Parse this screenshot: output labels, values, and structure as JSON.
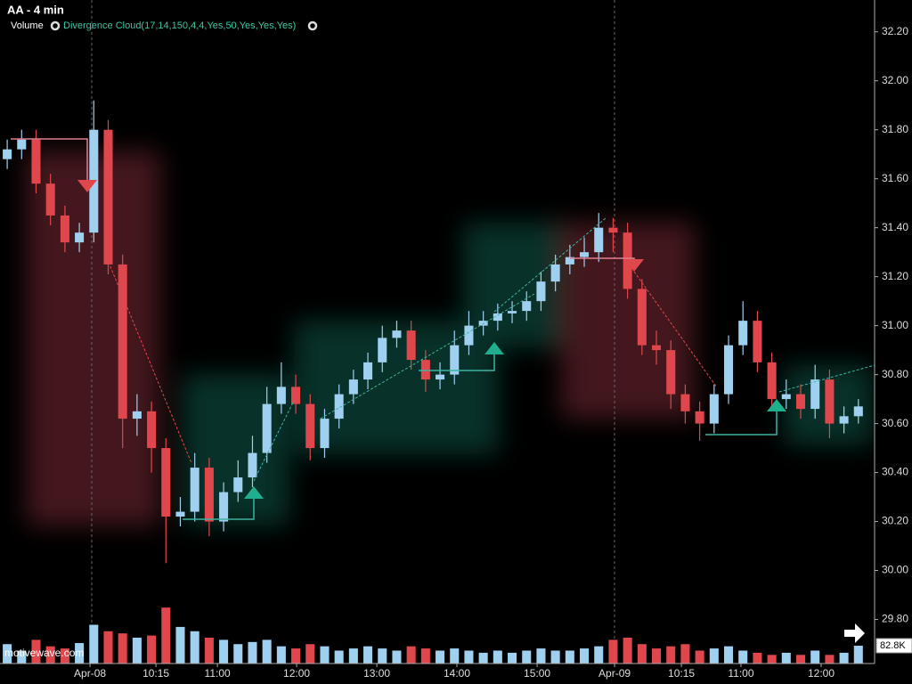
{
  "chart_data": {
    "type": "candlestick",
    "title": "AA - 4 min",
    "indicators": [
      "Volume",
      "Divergence Cloud(17,14,150,4,4,Yes,50,Yes,Yes,Yes)"
    ],
    "watermark": "motivewave.com",
    "xlim": [
      -0.5,
      60
    ],
    "xticks": [
      {
        "value": 5.74,
        "label": "Apr-08"
      },
      {
        "value": 10.31,
        "label": "10:15"
      },
      {
        "value": 14.57,
        "label": "11:00"
      },
      {
        "value": 20.06,
        "label": "12:00"
      },
      {
        "value": 25.62,
        "label": "13:00"
      },
      {
        "value": 31.17,
        "label": "14:00"
      },
      {
        "value": 36.73,
        "label": "15:00"
      },
      {
        "value": 42.1,
        "label": "Apr-09"
      },
      {
        "value": 46.73,
        "label": "10:15"
      },
      {
        "value": 50.86,
        "label": "11:00"
      },
      {
        "value": 56.42,
        "label": "12:00"
      }
    ],
    "ylim": [
      29.62,
      32.33
    ],
    "yticks": [
      {
        "value": 29.8,
        "label": "29.80"
      },
      {
        "value": 30.0,
        "label": "30.00"
      },
      {
        "value": 30.2,
        "label": "30.20"
      },
      {
        "value": 30.4,
        "label": "30.40"
      },
      {
        "value": 30.6,
        "label": "30.60"
      },
      {
        "value": 30.8,
        "label": "30.80"
      },
      {
        "value": 31.0,
        "label": "31.00"
      },
      {
        "value": 31.2,
        "label": "31.20"
      },
      {
        "value": 31.4,
        "label": "31.40"
      },
      {
        "value": 31.6,
        "label": "31.60"
      },
      {
        "value": 31.8,
        "label": "31.80"
      },
      {
        "value": 32.0,
        "label": "32.00"
      },
      {
        "value": 32.2,
        "label": "32.20"
      }
    ],
    "y2lim": [
      0,
      600
    ],
    "y2ticks": [
      {
        "value": 82.8,
        "label": "82.8K"
      }
    ],
    "up_color": "#9fd0f0",
    "down_color": "#e0474c",
    "open": [
      31.68,
      31.72,
      31.76,
      31.58,
      31.45,
      31.34,
      31.38,
      31.8,
      31.25,
      30.62,
      30.65,
      30.5,
      30.22,
      30.24,
      30.42,
      30.2,
      30.32,
      30.38,
      30.48,
      30.68,
      30.75,
      30.68,
      30.5,
      30.62,
      30.72,
      30.78,
      30.85,
      30.95,
      30.98,
      30.86,
      30.78,
      30.8,
      30.92,
      31.0,
      31.02,
      31.05,
      31.06,
      31.1,
      31.18,
      31.25,
      31.28,
      31.3,
      31.4,
      31.38,
      31.15,
      30.92,
      30.9,
      30.72,
      30.65,
      30.6,
      30.72,
      30.92,
      31.02,
      30.85,
      30.7,
      30.72,
      30.66,
      30.78,
      30.6,
      30.63
    ],
    "high": [
      31.76,
      31.8,
      31.8,
      31.62,
      31.49,
      31.42,
      31.92,
      31.84,
      31.29,
      30.72,
      30.69,
      30.54,
      30.3,
      30.48,
      30.46,
      30.36,
      30.45,
      30.55,
      30.75,
      30.85,
      30.8,
      30.72,
      30.66,
      30.76,
      30.82,
      30.89,
      31.0,
      31.02,
      31.02,
      30.9,
      30.85,
      30.98,
      31.06,
      31.06,
      31.09,
      31.1,
      31.14,
      31.22,
      31.29,
      31.33,
      31.36,
      31.46,
      31.44,
      31.42,
      31.19,
      30.98,
      30.94,
      30.76,
      30.69,
      30.76,
      30.96,
      31.1,
      31.06,
      30.89,
      30.78,
      30.76,
      30.84,
      30.82,
      30.67,
      30.7
    ],
    "low": [
      31.64,
      31.68,
      31.54,
      31.41,
      31.3,
      31.3,
      31.34,
      31.21,
      30.5,
      30.55,
      30.4,
      30.03,
      30.18,
      30.2,
      30.14,
      30.16,
      30.28,
      30.34,
      30.44,
      30.64,
      30.64,
      30.45,
      30.46,
      30.58,
      30.68,
      30.74,
      30.81,
      30.91,
      30.82,
      30.73,
      30.74,
      30.76,
      30.88,
      30.96,
      30.98,
      31.01,
      31.02,
      31.06,
      31.14,
      31.21,
      31.24,
      31.26,
      31.3,
      31.11,
      30.88,
      30.84,
      30.66,
      30.6,
      30.53,
      30.56,
      30.68,
      30.88,
      30.81,
      30.66,
      30.66,
      30.62,
      30.62,
      30.54,
      30.56,
      30.6
    ],
    "close": [
      31.72,
      31.76,
      31.58,
      31.45,
      31.34,
      31.38,
      31.8,
      31.25,
      30.62,
      30.65,
      30.5,
      30.22,
      30.24,
      30.42,
      30.2,
      30.32,
      30.38,
      30.48,
      30.68,
      30.75,
      30.68,
      30.5,
      30.62,
      30.72,
      30.78,
      30.85,
      30.95,
      30.98,
      30.86,
      30.78,
      30.8,
      30.92,
      31.0,
      31.02,
      31.05,
      31.06,
      31.1,
      31.18,
      31.25,
      31.28,
      31.3,
      31.4,
      31.38,
      31.15,
      30.92,
      30.9,
      30.72,
      30.65,
      30.6,
      30.72,
      30.92,
      31.02,
      30.85,
      30.7,
      30.72,
      30.66,
      30.78,
      30.6,
      30.63,
      30.67
    ],
    "volume": [
      90,
      60,
      110,
      80,
      70,
      95,
      180,
      150,
      140,
      120,
      130,
      260,
      170,
      150,
      120,
      110,
      90,
      100,
      110,
      80,
      70,
      90,
      80,
      60,
      70,
      80,
      70,
      60,
      80,
      70,
      60,
      70,
      60,
      50,
      60,
      50,
      60,
      70,
      60,
      60,
      70,
      80,
      110,
      120,
      90,
      70,
      80,
      90,
      60,
      70,
      80,
      60,
      50,
      40,
      50,
      40,
      60,
      40,
      50,
      82.8
    ]
  }
}
